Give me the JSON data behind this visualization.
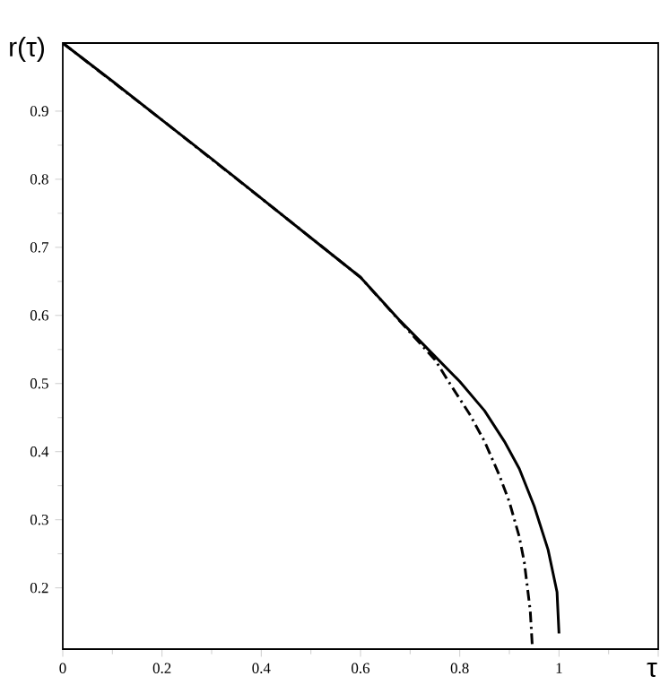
{
  "chart_data": {
    "type": "line",
    "xlabel": "τ",
    "ylabel": "r(τ)",
    "xlim": [
      0,
      1.2
    ],
    "ylim": [
      0.11,
      1
    ],
    "xticks": [
      0,
      0.2,
      0.4,
      0.6,
      0.8,
      1,
      {
        "value": 1.2,
        "label": null
      }
    ],
    "yticks": [
      0.2,
      0.3,
      0.4,
      0.5,
      0.6,
      0.7,
      0.8,
      0.9
    ],
    "grid": false,
    "marker": "none",
    "series": [
      {
        "color": "#000000",
        "line_style": "solid",
        "x": [
          0,
          0.1,
          0.2,
          0.3,
          0.4,
          0.5,
          0.6,
          0.68,
          0.75,
          0.8,
          0.85,
          0.89,
          0.92,
          0.95,
          0.978,
          0.996,
          1.0
        ],
        "values": [
          1,
          0.944,
          0.887,
          0.83,
          0.772,
          0.714,
          0.656,
          0.592,
          0.54,
          0.503,
          0.46,
          0.415,
          0.375,
          0.32,
          0.256,
          0.194,
          0.133
        ]
      },
      {
        "color": "#000000",
        "line_style": "dashdot",
        "x": [
          0,
          0.2,
          0.4,
          0.6,
          0.7,
          0.75,
          0.78,
          0.82,
          0.85,
          0.88,
          0.9,
          0.92,
          0.93,
          0.942,
          0.946
        ],
        "values": [
          1,
          0.887,
          0.772,
          0.656,
          0.575,
          0.535,
          0.5,
          0.455,
          0.415,
          0.365,
          0.326,
          0.275,
          0.238,
          0.167,
          0.117
        ]
      }
    ]
  }
}
